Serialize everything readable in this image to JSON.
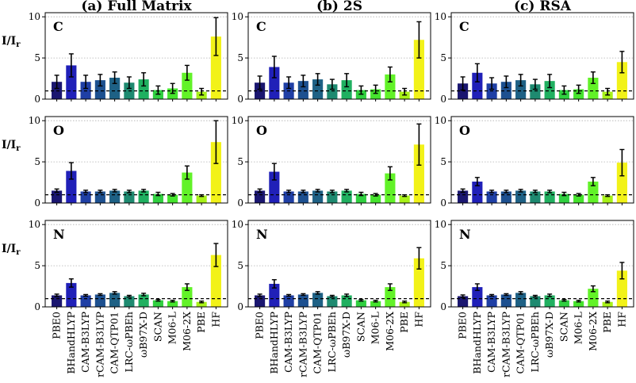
{
  "chart_data": {
    "type": "bar",
    "ylabel": "I/I_r",
    "ylim": [
      0,
      10.5
    ],
    "yticks": [
      0,
      5,
      10
    ],
    "grid": "horizontal dotted",
    "reference_line": 1,
    "columns": [
      {
        "key": "full",
        "title": "(a) Full Matrix"
      },
      {
        "key": "twos",
        "title": "(b) 2S"
      },
      {
        "key": "rsa",
        "title": "(c) RSA"
      }
    ],
    "rows": [
      {
        "key": "C",
        "label": "C"
      },
      {
        "key": "O",
        "label": "O"
      },
      {
        "key": "N",
        "label": "N"
      }
    ],
    "categories": [
      "PBE0",
      "BHandHLYP",
      "CAM-B3LYP",
      "rCAM-B3LYP",
      "CAM-QTP01",
      "LRC-ωPBEh",
      "ωB97X-D",
      "SCAN",
      "M06-L",
      "M06-2X",
      "PBE",
      "HF"
    ],
    "colors": [
      "#1a1670",
      "#2020b8",
      "#1f3fa5",
      "#1d5090",
      "#1e6185",
      "#1e8a70",
      "#20b060",
      "#30d040",
      "#46e42e",
      "#62f228",
      "#a8f218",
      "#f2f218"
    ],
    "panels": {
      "full": {
        "C": {
          "values": [
            2.1,
            4.1,
            2.1,
            2.3,
            2.6,
            2.0,
            2.4,
            1.1,
            1.3,
            3.2,
            0.9,
            7.6
          ],
          "errors": [
            0.8,
            1.4,
            0.8,
            0.7,
            0.7,
            0.7,
            0.8,
            0.5,
            0.6,
            0.9,
            0.4,
            2.3
          ]
        },
        "O": {
          "values": [
            1.5,
            3.9,
            1.4,
            1.4,
            1.5,
            1.4,
            1.5,
            1.1,
            1.0,
            3.7,
            0.9,
            7.4
          ],
          "errors": [
            0.2,
            1.0,
            0.15,
            0.15,
            0.15,
            0.15,
            0.15,
            0.2,
            0.15,
            0.8,
            0.1,
            2.6
          ]
        },
        "N": {
          "values": [
            1.4,
            2.9,
            1.4,
            1.5,
            1.7,
            1.3,
            1.5,
            0.8,
            0.7,
            2.4,
            0.6,
            6.3
          ],
          "errors": [
            0.15,
            0.5,
            0.1,
            0.1,
            0.15,
            0.1,
            0.15,
            0.1,
            0.1,
            0.4,
            0.1,
            1.4
          ]
        }
      },
      "twos": {
        "C": {
          "values": [
            2.0,
            3.9,
            2.0,
            2.2,
            2.4,
            1.8,
            2.3,
            1.1,
            1.2,
            3.0,
            0.9,
            7.2
          ],
          "errors": [
            0.8,
            1.3,
            0.7,
            0.7,
            0.7,
            0.6,
            0.8,
            0.5,
            0.5,
            0.9,
            0.4,
            2.2
          ]
        },
        "O": {
          "values": [
            1.5,
            3.8,
            1.4,
            1.4,
            1.5,
            1.4,
            1.5,
            1.1,
            1.0,
            3.6,
            0.9,
            7.1
          ],
          "errors": [
            0.2,
            1.0,
            0.15,
            0.15,
            0.15,
            0.15,
            0.15,
            0.2,
            0.15,
            0.8,
            0.1,
            2.5
          ]
        },
        "N": {
          "values": [
            1.4,
            2.8,
            1.4,
            1.5,
            1.7,
            1.3,
            1.4,
            0.8,
            0.7,
            2.4,
            0.6,
            5.9
          ],
          "errors": [
            0.15,
            0.5,
            0.1,
            0.1,
            0.15,
            0.1,
            0.15,
            0.1,
            0.1,
            0.4,
            0.1,
            1.3
          ]
        }
      },
      "rsa": {
        "C": {
          "values": [
            1.9,
            3.2,
            1.9,
            2.1,
            2.3,
            1.8,
            2.2,
            1.1,
            1.2,
            2.6,
            0.9,
            4.5
          ],
          "errors": [
            0.8,
            1.1,
            0.7,
            0.7,
            0.7,
            0.6,
            0.8,
            0.5,
            0.5,
            0.7,
            0.4,
            1.3
          ]
        },
        "O": {
          "values": [
            1.5,
            2.6,
            1.4,
            1.4,
            1.5,
            1.4,
            1.4,
            1.1,
            1.0,
            2.6,
            0.9,
            4.9
          ],
          "errors": [
            0.2,
            0.5,
            0.15,
            0.15,
            0.15,
            0.15,
            0.15,
            0.2,
            0.15,
            0.5,
            0.1,
            1.6
          ]
        },
        "N": {
          "values": [
            1.3,
            2.4,
            1.4,
            1.5,
            1.7,
            1.3,
            1.4,
            0.8,
            0.7,
            2.2,
            0.6,
            4.4
          ],
          "errors": [
            0.15,
            0.4,
            0.1,
            0.1,
            0.15,
            0.1,
            0.15,
            0.1,
            0.1,
            0.35,
            0.1,
            1.0
          ]
        }
      }
    }
  }
}
